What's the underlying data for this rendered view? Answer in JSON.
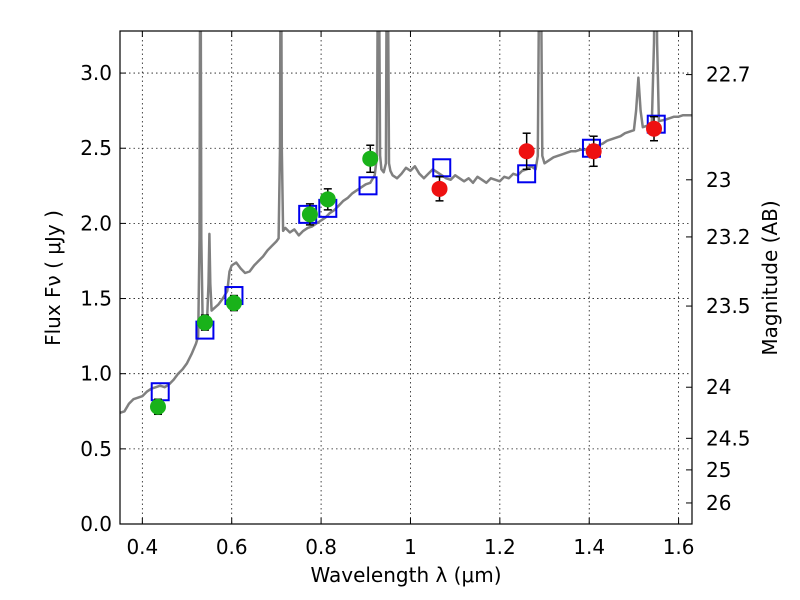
{
  "chart_data": {
    "type": "scatter",
    "title": "",
    "xlabel": "Wavelength  λ (μm)",
    "ylabel": "Flux  Fν  ( μJy )",
    "y2label": "Magnitude (AB)",
    "xlim": [
      0.35,
      1.63
    ],
    "ylim": [
      0.0,
      3.28
    ],
    "grid": true,
    "x_ticks": [
      0.4,
      0.6,
      0.8,
      1.0,
      1.2,
      1.4,
      1.6
    ],
    "x_tick_labels": [
      "0.4",
      "0.6",
      "0.8",
      "1",
      "1.2",
      "1.4",
      "1.6"
    ],
    "y_ticks": [
      0.0,
      0.5,
      1.0,
      1.5,
      2.0,
      2.5,
      3.0
    ],
    "y_tick_labels": [
      "0.0",
      "0.5",
      "1.0",
      "1.5",
      "2.0",
      "2.5",
      "3.0"
    ],
    "y2_ticks": [
      {
        "mag": "22.7",
        "flux": 2.99
      },
      {
        "mag": "23",
        "flux": 2.29
      },
      {
        "mag": "23.2",
        "flux": 1.91
      },
      {
        "mag": "23.5",
        "flux": 1.45
      },
      {
        "mag": "24",
        "flux": 0.91
      },
      {
        "mag": "24.5",
        "flux": 0.57
      },
      {
        "mag": "25",
        "flux": 0.36
      },
      {
        "mag": "26",
        "flux": 0.14
      }
    ],
    "observed_optical": {
      "color": "#19b21a",
      "points": [
        {
          "x": 0.435,
          "y": 0.78,
          "err": 0.05
        },
        {
          "x": 0.54,
          "y": 1.34,
          "err": 0.05
        },
        {
          "x": 0.605,
          "y": 1.47,
          "err": 0.05
        },
        {
          "x": 0.775,
          "y": 2.06,
          "err": 0.07
        },
        {
          "x": 0.815,
          "y": 2.16,
          "err": 0.07
        },
        {
          "x": 0.91,
          "y": 2.43,
          "err": 0.09
        }
      ]
    },
    "observed_nir": {
      "color": "#ee1111",
      "points": [
        {
          "x": 1.065,
          "y": 2.23,
          "err": 0.08
        },
        {
          "x": 1.26,
          "y": 2.48,
          "err": 0.12
        },
        {
          "x": 1.41,
          "y": 2.48,
          "err": 0.1
        },
        {
          "x": 1.545,
          "y": 2.63,
          "err": 0.08
        }
      ]
    },
    "model_photometry": {
      "color": "#0000ee",
      "points": [
        {
          "x": 0.44,
          "y": 0.88
        },
        {
          "x": 0.54,
          "y": 1.29
        },
        {
          "x": 0.605,
          "y": 1.52
        },
        {
          "x": 0.77,
          "y": 2.06
        },
        {
          "x": 0.815,
          "y": 2.1
        },
        {
          "x": 0.905,
          "y": 2.25
        },
        {
          "x": 1.07,
          "y": 2.37
        },
        {
          "x": 1.26,
          "y": 2.33
        },
        {
          "x": 1.405,
          "y": 2.5
        },
        {
          "x": 1.55,
          "y": 2.66
        }
      ]
    },
    "model_spectrum": {
      "color": "#808080",
      "points": [
        [
          0.35,
          0.74
        ],
        [
          0.36,
          0.75
        ],
        [
          0.37,
          0.8
        ],
        [
          0.38,
          0.83
        ],
        [
          0.39,
          0.84
        ],
        [
          0.4,
          0.85
        ],
        [
          0.41,
          0.88
        ],
        [
          0.42,
          0.9
        ],
        [
          0.43,
          0.91
        ],
        [
          0.44,
          0.92
        ],
        [
          0.45,
          0.91
        ],
        [
          0.46,
          0.93
        ],
        [
          0.47,
          0.96
        ],
        [
          0.48,
          1.0
        ],
        [
          0.49,
          1.03
        ],
        [
          0.5,
          1.07
        ],
        [
          0.51,
          1.13
        ],
        [
          0.52,
          1.2
        ],
        [
          0.525,
          1.25
        ],
        [
          0.528,
          1.9
        ],
        [
          0.53,
          4.5
        ],
        [
          0.532,
          1.9
        ],
        [
          0.535,
          1.33
        ],
        [
          0.545,
          1.36
        ],
        [
          0.548,
          1.6
        ],
        [
          0.55,
          1.93
        ],
        [
          0.552,
          1.6
        ],
        [
          0.555,
          1.42
        ],
        [
          0.57,
          1.46
        ],
        [
          0.58,
          1.5
        ],
        [
          0.59,
          1.55
        ],
        [
          0.595,
          1.68
        ],
        [
          0.6,
          1.72
        ],
        [
          0.61,
          1.74
        ],
        [
          0.62,
          1.7
        ],
        [
          0.63,
          1.67
        ],
        [
          0.64,
          1.68
        ],
        [
          0.65,
          1.72
        ],
        [
          0.66,
          1.75
        ],
        [
          0.67,
          1.78
        ],
        [
          0.68,
          1.82
        ],
        [
          0.69,
          1.85
        ],
        [
          0.7,
          1.88
        ],
        [
          0.705,
          1.9
        ],
        [
          0.708,
          2.5
        ],
        [
          0.71,
          4.5
        ],
        [
          0.712,
          2.5
        ],
        [
          0.715,
          1.95
        ],
        [
          0.72,
          1.97
        ],
        [
          0.73,
          1.94
        ],
        [
          0.74,
          1.96
        ],
        [
          0.75,
          1.92
        ],
        [
          0.76,
          1.95
        ],
        [
          0.77,
          1.97
        ],
        [
          0.78,
          1.98
        ],
        [
          0.79,
          2.0
        ],
        [
          0.8,
          2.02
        ],
        [
          0.81,
          2.04
        ],
        [
          0.82,
          2.07
        ],
        [
          0.83,
          2.09
        ],
        [
          0.84,
          2.12
        ],
        [
          0.85,
          2.15
        ],
        [
          0.86,
          2.17
        ],
        [
          0.87,
          2.2
        ],
        [
          0.88,
          2.22
        ],
        [
          0.89,
          2.24
        ],
        [
          0.9,
          2.26
        ],
        [
          0.91,
          2.27
        ],
        [
          0.92,
          2.32
        ],
        [
          0.925,
          2.45
        ],
        [
          0.928,
          4.5
        ],
        [
          0.932,
          2.45
        ],
        [
          0.935,
          2.36
        ],
        [
          0.94,
          2.34
        ],
        [
          0.945,
          2.4
        ],
        [
          0.948,
          4.5
        ],
        [
          0.952,
          2.4
        ],
        [
          0.955,
          2.35
        ],
        [
          0.96,
          2.32
        ],
        [
          0.97,
          2.3
        ],
        [
          0.98,
          2.33
        ],
        [
          0.99,
          2.37
        ],
        [
          1.0,
          2.35
        ],
        [
          1.01,
          2.38
        ],
        [
          1.02,
          2.33
        ],
        [
          1.03,
          2.3
        ],
        [
          1.04,
          2.33
        ],
        [
          1.05,
          2.36
        ],
        [
          1.06,
          2.34
        ],
        [
          1.07,
          2.32
        ],
        [
          1.08,
          2.3
        ],
        [
          1.09,
          2.29
        ],
        [
          1.1,
          2.32
        ],
        [
          1.11,
          2.3
        ],
        [
          1.12,
          2.28
        ],
        [
          1.13,
          2.3
        ],
        [
          1.14,
          2.27
        ],
        [
          1.15,
          2.31
        ],
        [
          1.16,
          2.29
        ],
        [
          1.17,
          2.27
        ],
        [
          1.18,
          2.3
        ],
        [
          1.19,
          2.29
        ],
        [
          1.2,
          2.28
        ],
        [
          1.21,
          2.31
        ],
        [
          1.22,
          2.3
        ],
        [
          1.23,
          2.33
        ],
        [
          1.24,
          2.32
        ],
        [
          1.25,
          2.35
        ],
        [
          1.26,
          2.36
        ],
        [
          1.27,
          2.38
        ],
        [
          1.28,
          2.36
        ],
        [
          1.285,
          2.45
        ],
        [
          1.29,
          4.5
        ],
        [
          1.295,
          2.45
        ],
        [
          1.3,
          2.4
        ],
        [
          1.31,
          2.42
        ],
        [
          1.32,
          2.44
        ],
        [
          1.33,
          2.45
        ],
        [
          1.34,
          2.46
        ],
        [
          1.35,
          2.47
        ],
        [
          1.36,
          2.48
        ],
        [
          1.37,
          2.48
        ],
        [
          1.38,
          2.49
        ],
        [
          1.39,
          2.49
        ],
        [
          1.4,
          2.5
        ],
        [
          1.41,
          2.51
        ],
        [
          1.42,
          2.52
        ],
        [
          1.43,
          2.53
        ],
        [
          1.44,
          2.55
        ],
        [
          1.45,
          2.56
        ],
        [
          1.46,
          2.57
        ],
        [
          1.47,
          2.58
        ],
        [
          1.48,
          2.6
        ],
        [
          1.49,
          2.61
        ],
        [
          1.5,
          2.62
        ],
        [
          1.505,
          2.75
        ],
        [
          1.51,
          2.97
        ],
        [
          1.515,
          2.75
        ],
        [
          1.52,
          2.64
        ],
        [
          1.53,
          2.65
        ],
        [
          1.54,
          2.66
        ],
        [
          1.545,
          3.2
        ],
        [
          1.548,
          4.5
        ],
        [
          1.552,
          3.2
        ],
        [
          1.556,
          2.68
        ],
        [
          1.57,
          2.69
        ],
        [
          1.58,
          2.7
        ],
        [
          1.59,
          2.71
        ],
        [
          1.6,
          2.71
        ],
        [
          1.61,
          2.72
        ],
        [
          1.62,
          2.72
        ],
        [
          1.63,
          2.72
        ]
      ]
    }
  }
}
